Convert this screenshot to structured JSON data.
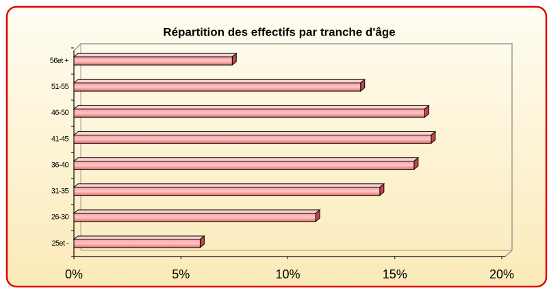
{
  "chart_data": {
    "type": "bar",
    "orientation": "horizontal",
    "title": "Répartition des effectifs par tranche d'âge",
    "categories": [
      "56et +",
      "51-55",
      "46-50",
      "41-45",
      "36-40",
      "31-35",
      "26-30",
      "25et -"
    ],
    "values": [
      7.4,
      13.4,
      16.4,
      16.7,
      15.9,
      14.3,
      11.3,
      5.9
    ],
    "color": "#f08080",
    "xlim": [
      0,
      20
    ],
    "xticks": [
      {
        "value": 0,
        "label": "0%"
      },
      {
        "value": 5,
        "label": "5%"
      },
      {
        "value": 10,
        "label": "10%"
      },
      {
        "value": 15,
        "label": "15%"
      },
      {
        "value": 20,
        "label": "20%"
      }
    ]
  }
}
